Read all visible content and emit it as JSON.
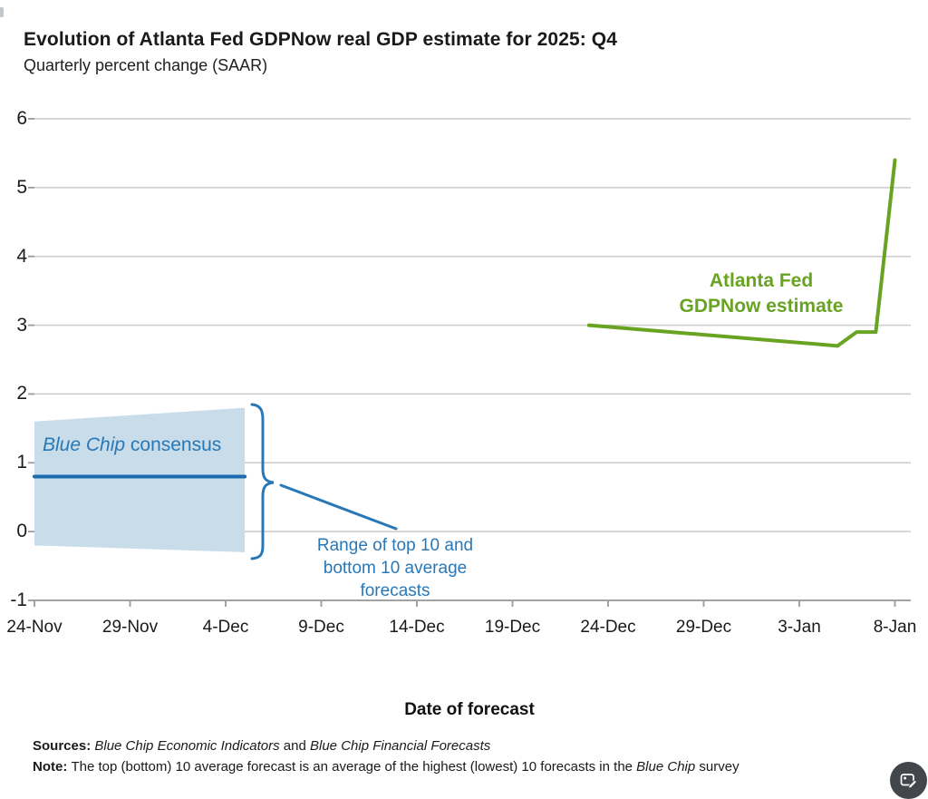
{
  "header": {
    "title": "Evolution of Atlanta Fed GDPNow real GDP estimate for 2025: Q4",
    "subtitle": "Quarterly percent change (SAAR)"
  },
  "chart_data": {
    "type": "line",
    "title": "Evolution of Atlanta Fed GDPNow real GDP estimate for 2025: Q4",
    "subtitle": "Quarterly percent change (SAAR)",
    "xlabel": "Date of forecast",
    "ylabel": "Quarterly percent change (SAAR)",
    "ylim": [
      -1,
      6
    ],
    "yticks": [
      6,
      5,
      4,
      3,
      2,
      1,
      0,
      -1
    ],
    "x_tick_labels": [
      "24-Nov",
      "29-Nov",
      "4-Dec",
      "9-Dec",
      "14-Dec",
      "19-Dec",
      "24-Dec",
      "29-Dec",
      "3-Jan",
      "8-Jan"
    ],
    "x_tick_days": [
      0,
      5,
      10,
      15,
      20,
      25,
      30,
      35,
      40,
      45
    ],
    "grid": true,
    "legend_position": "inline-annotations",
    "series": [
      {
        "name": "Atlanta Fed GDPNow estimate",
        "type": "line",
        "color": "#69a322",
        "points": [
          {
            "date": "23-Dec",
            "day": 29,
            "value": 3.0
          },
          {
            "date": "5-Jan",
            "day": 42,
            "value": 2.7
          },
          {
            "date": "6-Jan",
            "day": 43,
            "value": 2.9
          },
          {
            "date": "7-Jan",
            "day": 44,
            "value": 2.9
          },
          {
            "date": "8-Jan",
            "day": 45,
            "value": 5.4
          }
        ]
      },
      {
        "name": "Blue Chip consensus",
        "type": "line",
        "color": "#1a6cae",
        "points": [
          {
            "date": "24-Nov",
            "day": 0,
            "value": 0.8
          },
          {
            "date": "5-Dec",
            "day": 11,
            "value": 0.8
          }
        ]
      },
      {
        "name": "Range of top 10 and bottom 10 average forecasts",
        "type": "band",
        "fill": "#c8dce9",
        "points": [
          {
            "date": "24-Nov",
            "day": 0,
            "top": 1.6,
            "bottom": -0.2
          },
          {
            "date": "5-Dec",
            "day": 11,
            "top": 1.8,
            "bottom": -0.3
          }
        ]
      }
    ]
  },
  "annotations": {
    "gdpnow_label": {
      "line1": "Atlanta Fed",
      "line2": "GDPNow estimate",
      "color": "#69a322"
    },
    "bluechip_label": {
      "italic_part": "Blue Chip",
      "regular_part": " consensus",
      "color": "#2878b8"
    },
    "range_label": {
      "line1": "Range of top 10 and",
      "line2": "bottom 10 average",
      "line3": "forecasts",
      "color": "#2878b8"
    }
  },
  "footer": {
    "x_axis_title": "Date of forecast",
    "sources_label": "Sources: ",
    "source1_italic": "Blue Chip Economic Indicators",
    "sources_joiner": " and ",
    "source2_italic": "Blue Chip Financial Forecasts",
    "note_label": "Note: ",
    "note_text_pre": "The top (bottom) 10 average forecast is an average of the highest (lowest) 10 forecasts in the ",
    "note_italic": "Blue Chip",
    "note_text_post": " survey"
  },
  "theme": {
    "grid_color": "#cbcbcb",
    "axis_color": "#a3a3a3",
    "tick_color": "#999999",
    "green": "#69a322",
    "dark_blue": "#1a6cae",
    "band_fill": "#c8dce9",
    "accent_blue": "#2878b8",
    "icon_bg": "#43474b",
    "icon_fg": "#ffffff"
  }
}
